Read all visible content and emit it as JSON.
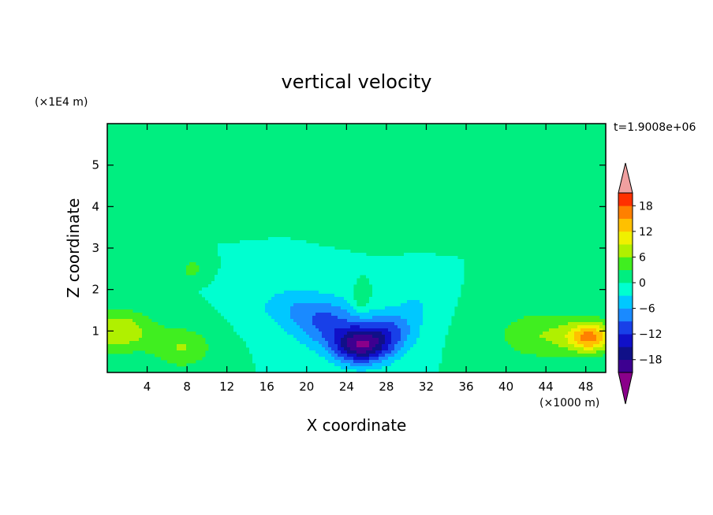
{
  "chart_data": {
    "type": "heatmap",
    "title": "vertical velocity",
    "xlabel": "X coordinate",
    "ylabel": "Z coordinate",
    "x_unit": "(×1000 m)",
    "y_unit": "(×1E4 m)",
    "time_label": "t=1.9008e+06",
    "xlim": [
      0,
      50
    ],
    "ylim": [
      0,
      6
    ],
    "x_ticks": [
      "4",
      "8",
      "12",
      "16",
      "20",
      "24",
      "28",
      "32",
      "36",
      "40",
      "44",
      "48"
    ],
    "x_tick_values": [
      4,
      8,
      12,
      16,
      20,
      24,
      28,
      32,
      36,
      40,
      44,
      48
    ],
    "y_ticks": [
      "1",
      "2",
      "3",
      "4",
      "5"
    ],
    "y_tick_values": [
      1,
      2,
      3,
      4,
      5
    ],
    "grid": false,
    "colorbar": {
      "labels": [
        "18",
        "12",
        "6",
        "0",
        "−6",
        "−12",
        "−18"
      ],
      "label_values": [
        18,
        12,
        6,
        0,
        -6,
        -12,
        -18
      ],
      "levels": [
        -21,
        -18,
        -15,
        -12,
        -9,
        -6,
        -3,
        0,
        3,
        6,
        9,
        12,
        15,
        18,
        21
      ],
      "colors": [
        "#3d0090",
        "#101088",
        "#1010c8",
        "#1840e8",
        "#1a8aff",
        "#00c8ff",
        "#00ffd0",
        "#00ee80",
        "#40ee20",
        "#b0f000",
        "#f0f000",
        "#ffc000",
        "#ff8000",
        "#ff3000"
      ],
      "under_color": "#8a008a",
      "over_color": "#f0a0a0"
    },
    "features": [
      {
        "x": 25.5,
        "z": 0.65,
        "value": -19,
        "sx": 2.8,
        "sz": 0.45
      },
      {
        "x": 22.0,
        "z": 1.2,
        "value": -9,
        "sx": 3.5,
        "sz": 0.6
      },
      {
        "x": 28.5,
        "z": 1.0,
        "value": -8,
        "sx": 2.5,
        "sz": 0.5
      },
      {
        "x": 18.0,
        "z": 1.6,
        "value": -4,
        "sx": 3.5,
        "sz": 0.5
      },
      {
        "x": 31.0,
        "z": 1.6,
        "value": -3,
        "sx": 2.0,
        "sz": 0.5
      },
      {
        "x": 48.5,
        "z": 0.85,
        "value": 14,
        "sx": 2.2,
        "sz": 0.35
      },
      {
        "x": 44.0,
        "z": 0.9,
        "value": 6,
        "sx": 5.0,
        "sz": 0.6
      },
      {
        "x": 1.0,
        "z": 1.0,
        "value": 9,
        "sx": 3.5,
        "sz": 0.5
      },
      {
        "x": 7.5,
        "z": 0.6,
        "value": 6,
        "sx": 3.0,
        "sz": 0.5
      },
      {
        "x": 8.5,
        "z": 2.5,
        "value": 5,
        "sx": 1.0,
        "sz": 0.2
      },
      {
        "x": 25.5,
        "z": 1.75,
        "value": 4,
        "sx": 0.8,
        "sz": 0.3
      },
      {
        "x": 12.0,
        "z": 4.3,
        "value": 2,
        "sx": 5.0,
        "sz": 0.35
      },
      {
        "x": 37.0,
        "z": 5.2,
        "value": 2,
        "sx": 5.0,
        "sz": 0.4
      },
      {
        "x": 30.0,
        "z": 3.6,
        "value": 2,
        "sx": 4.0,
        "sz": 0.3
      }
    ]
  }
}
